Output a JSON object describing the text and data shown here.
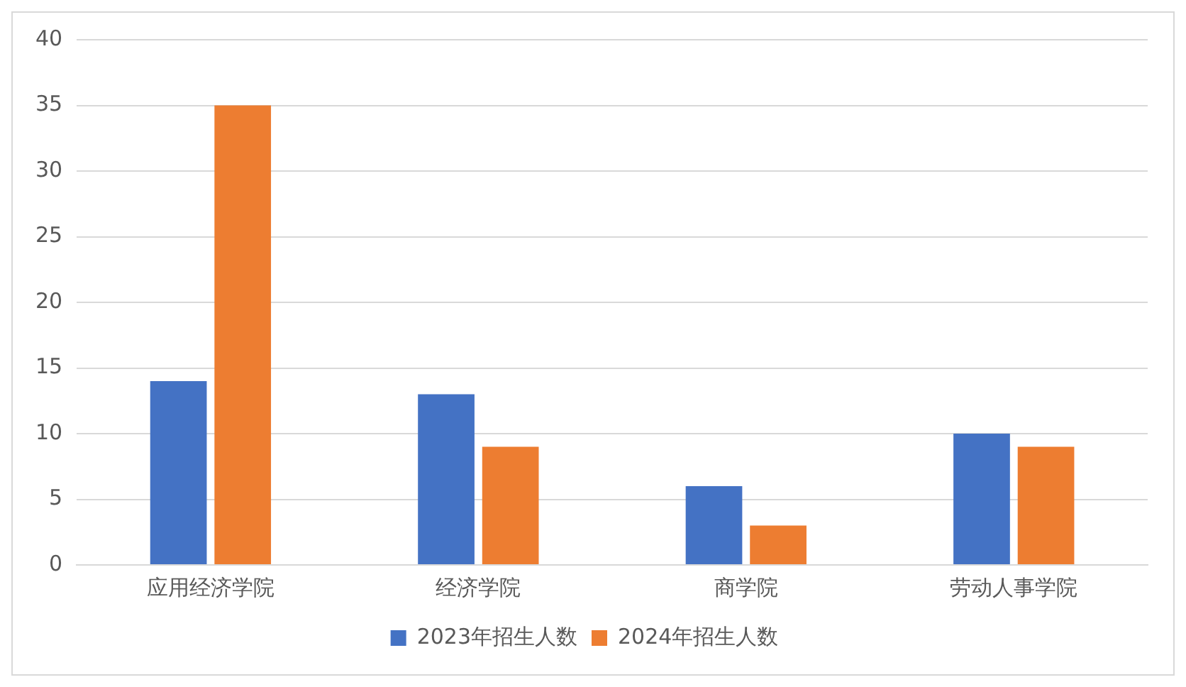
{
  "chart_data": {
    "type": "bar",
    "categories": [
      "应用经济学院",
      "经济学院",
      "商学院",
      "劳动人事学院"
    ],
    "series": [
      {
        "name": "2023年招生人数",
        "color": "#4472c4",
        "values": [
          14,
          13,
          6,
          10
        ]
      },
      {
        "name": "2024年招生人数",
        "color": "#ed7d31",
        "values": [
          35,
          9,
          3,
          9
        ]
      }
    ],
    "ylim": [
      0,
      40
    ],
    "yticks": [
      0,
      5,
      10,
      15,
      20,
      25,
      30,
      35,
      40
    ],
    "grid": "y",
    "legend": "bottom"
  }
}
